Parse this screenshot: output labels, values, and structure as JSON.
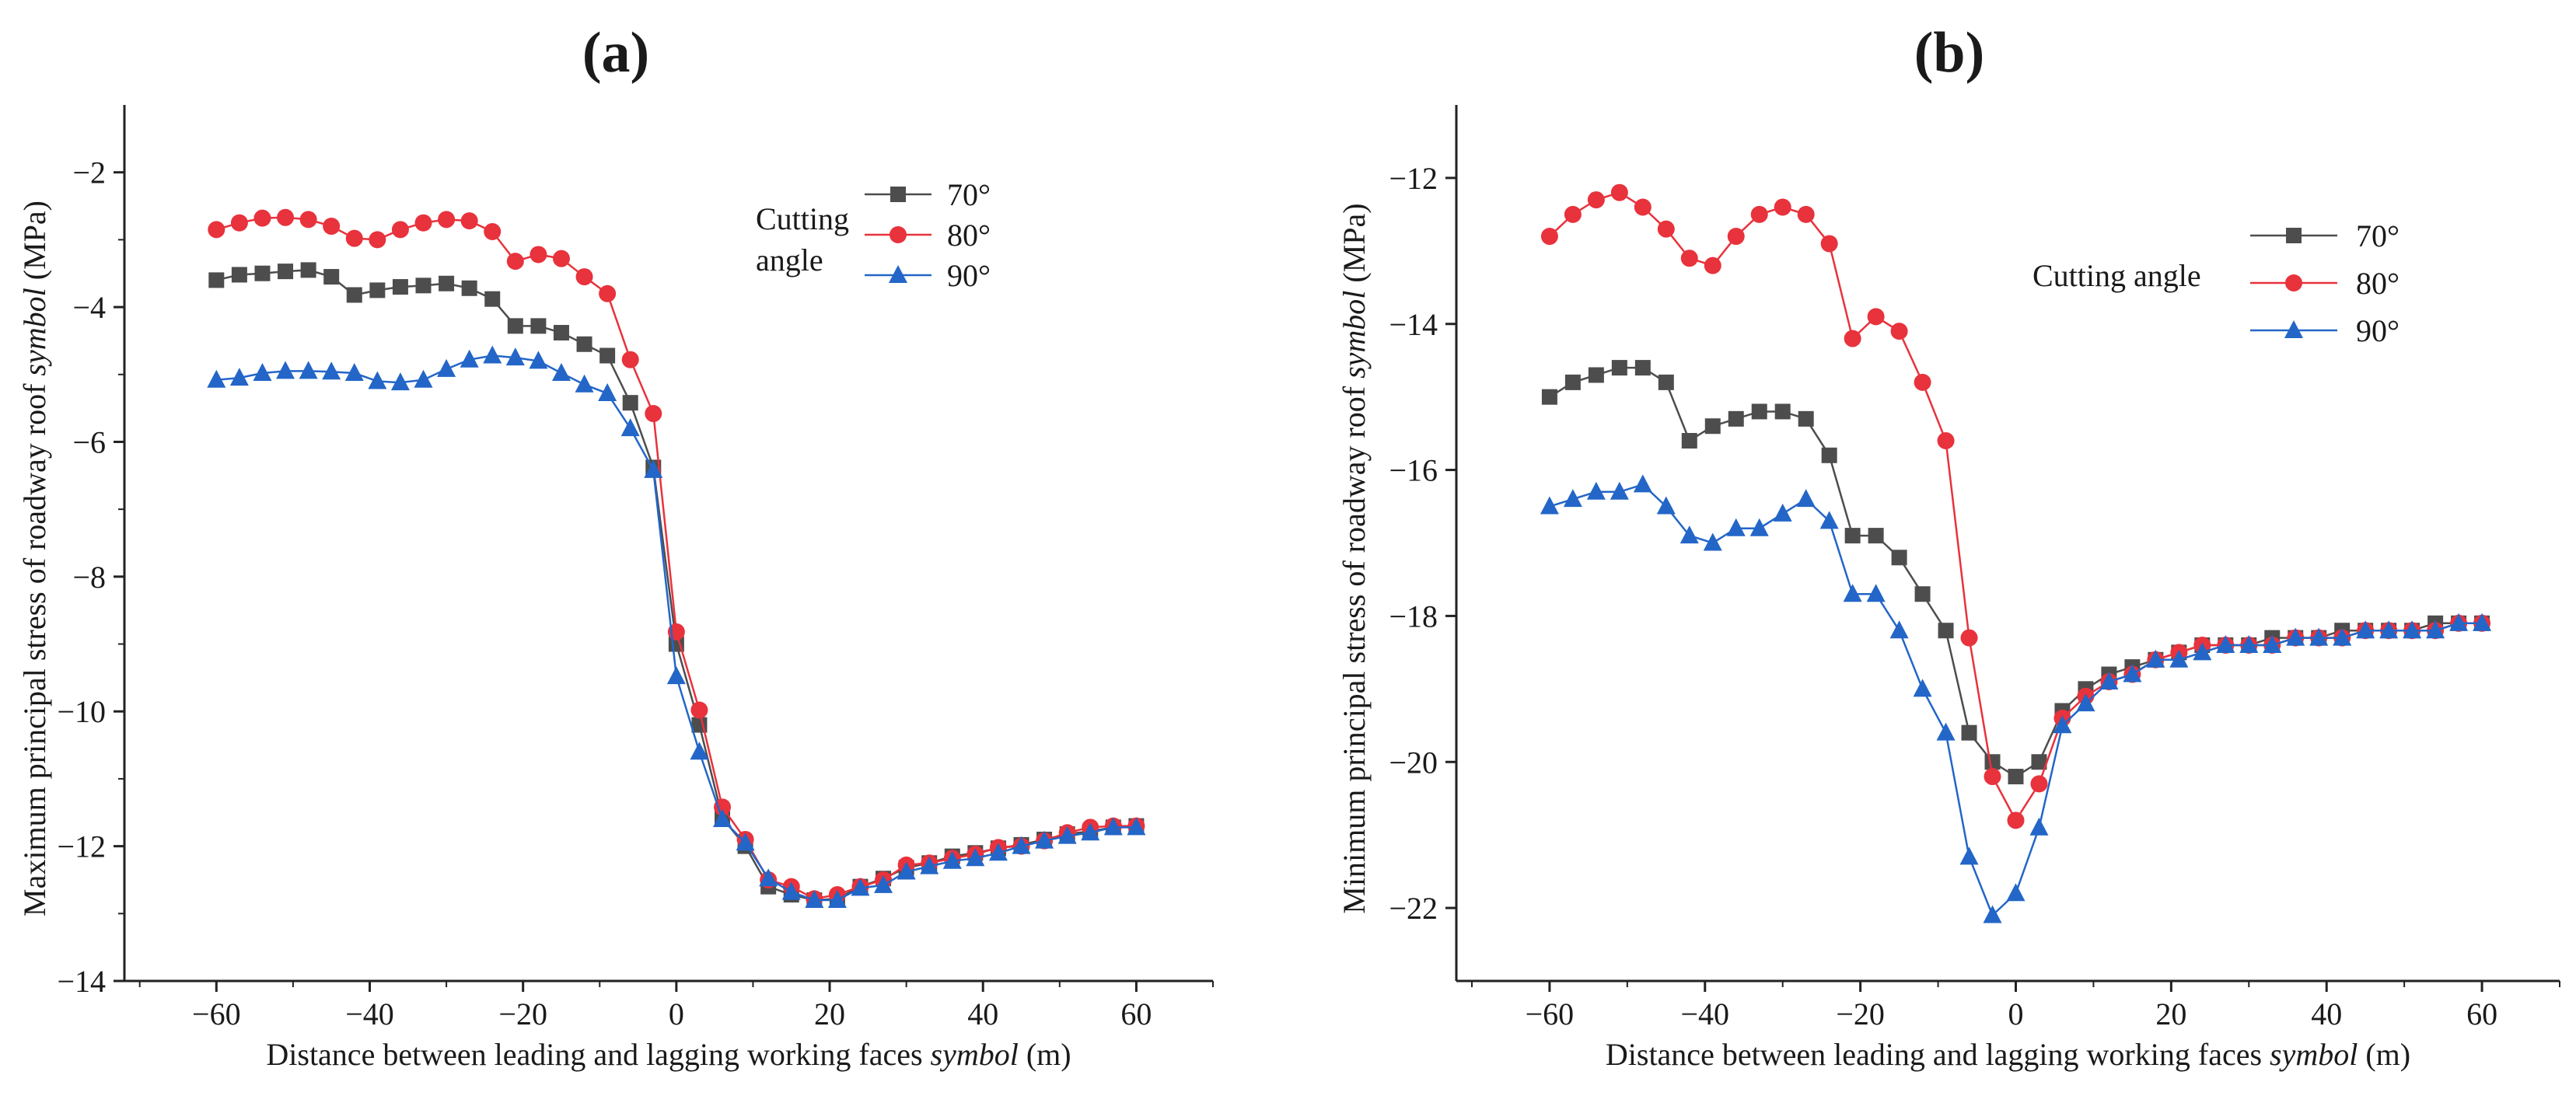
{
  "chart_data": [
    {
      "type": "line",
      "panel": "(a)",
      "xlabel_parts": [
        "Distance between leading and lagging working faces ",
        "symbol",
        " (m)"
      ],
      "ylabel_parts": [
        "Maximum principal stress of roadway roof ",
        "symbol",
        " (MPa)"
      ],
      "xlim": [
        -72,
        70
      ],
      "ylim": [
        -14,
        -1
      ],
      "xticks": [
        -60,
        -40,
        -20,
        0,
        20,
        40,
        60
      ],
      "yticks": [
        -14,
        -12,
        -10,
        -8,
        -6,
        -4,
        -2
      ],
      "legend_title_lines": [
        "Cutting",
        "angle"
      ],
      "legend_position": "top-right",
      "series": [
        {
          "name": "70°",
          "color": "#4d4d4d",
          "marker": "square",
          "x": [
            -60,
            -57,
            -54,
            -51,
            -48,
            -45,
            -42,
            -39,
            -36,
            -33,
            -30,
            -27,
            -24,
            -21,
            -18,
            -15,
            -12,
            -9,
            -6,
            -3,
            0,
            3,
            6,
            9,
            12,
            15,
            18,
            21,
            24,
            27,
            30,
            33,
            36,
            39,
            42,
            45,
            48,
            51,
            54,
            57,
            60
          ],
          "y": [
            -3.6,
            -3.52,
            -3.5,
            -3.47,
            -3.45,
            -3.55,
            -3.82,
            -3.75,
            -3.7,
            -3.68,
            -3.65,
            -3.72,
            -3.88,
            -4.28,
            -4.28,
            -4.38,
            -4.55,
            -4.72,
            -5.42,
            -6.38,
            -9.0,
            -10.2,
            -11.58,
            -12.0,
            -12.6,
            -12.72,
            -12.8,
            -12.78,
            -12.6,
            -12.48,
            -12.32,
            -12.25,
            -12.15,
            -12.1,
            -12.03,
            -11.98,
            -11.9,
            -11.82,
            -11.78,
            -11.72,
            -11.7
          ]
        },
        {
          "name": "80°",
          "color": "#e8323c",
          "marker": "circle",
          "x": [
            -60,
            -57,
            -54,
            -51,
            -48,
            -45,
            -42,
            -39,
            -36,
            -33,
            -30,
            -27,
            -24,
            -21,
            -18,
            -15,
            -12,
            -9,
            -6,
            -3,
            0,
            3,
            6,
            9,
            12,
            15,
            18,
            21,
            24,
            27,
            30,
            33,
            36,
            39,
            42,
            45,
            48,
            51,
            54,
            57,
            60
          ],
          "y": [
            -2.85,
            -2.75,
            -2.68,
            -2.67,
            -2.7,
            -2.8,
            -2.98,
            -3.0,
            -2.85,
            -2.75,
            -2.7,
            -2.72,
            -2.88,
            -3.32,
            -3.22,
            -3.28,
            -3.55,
            -3.8,
            -4.78,
            -5.58,
            -8.82,
            -9.98,
            -11.42,
            -11.9,
            -12.5,
            -12.6,
            -12.78,
            -12.72,
            -12.6,
            -12.5,
            -12.28,
            -12.25,
            -12.18,
            -12.12,
            -12.02,
            -12.0,
            -11.92,
            -11.8,
            -11.72,
            -11.7,
            -11.7
          ]
        },
        {
          "name": "90°",
          "color": "#2366c8",
          "marker": "triangle",
          "x": [
            -60,
            -57,
            -54,
            -51,
            -48,
            -45,
            -42,
            -39,
            -36,
            -33,
            -30,
            -27,
            -24,
            -21,
            -18,
            -15,
            -12,
            -9,
            -6,
            -3,
            0,
            3,
            6,
            9,
            12,
            15,
            18,
            21,
            24,
            27,
            30,
            33,
            36,
            39,
            42,
            45,
            48,
            51,
            54,
            57,
            60
          ],
          "y": [
            -5.08,
            -5.05,
            -4.98,
            -4.95,
            -4.95,
            -4.96,
            -4.98,
            -5.1,
            -5.12,
            -5.08,
            -4.92,
            -4.78,
            -4.72,
            -4.75,
            -4.8,
            -4.98,
            -5.15,
            -5.28,
            -5.8,
            -6.42,
            -9.48,
            -10.6,
            -11.6,
            -11.95,
            -12.48,
            -12.68,
            -12.8,
            -12.8,
            -12.62,
            -12.58,
            -12.38,
            -12.3,
            -12.22,
            -12.18,
            -12.1,
            -12.0,
            -11.92,
            -11.85,
            -11.8,
            -11.72,
            -11.72
          ]
        }
      ]
    },
    {
      "type": "line",
      "panel": "(b)",
      "xlabel_parts": [
        "Distance between leading and lagging working faces ",
        "symbol",
        " (m)"
      ],
      "ylabel_parts": [
        "Minimum principal stress of roadway roof ",
        "symbol",
        " (MPa)"
      ],
      "xlim": [
        -72,
        70
      ],
      "ylim": [
        -23,
        -11
      ],
      "xticks": [
        -60,
        -40,
        -20,
        0,
        20,
        40,
        60
      ],
      "yticks": [
        -22,
        -20,
        -18,
        -16,
        -14,
        -12
      ],
      "legend_title_lines": [
        "Cutting angle"
      ],
      "legend_position": "top-right",
      "series": [
        {
          "name": "70°",
          "color": "#4d4d4d",
          "marker": "square",
          "x": [
            -60,
            -57,
            -54,
            -51,
            -48,
            -45,
            -42,
            -39,
            -36,
            -33,
            -30,
            -27,
            -24,
            -21,
            -18,
            -15,
            -12,
            -9,
            -6,
            -3,
            0,
            3,
            6,
            9,
            12,
            15,
            18,
            21,
            24,
            27,
            30,
            33,
            36,
            39,
            42,
            45,
            48,
            51,
            54,
            57,
            60
          ],
          "y": [
            -15.0,
            -14.8,
            -14.7,
            -14.6,
            -14.6,
            -14.8,
            -15.6,
            -15.4,
            -15.3,
            -15.2,
            -15.2,
            -15.3,
            -15.8,
            -16.9,
            -16.9,
            -17.2,
            -17.7,
            -18.2,
            -19.6,
            -20.0,
            -20.2,
            -20.0,
            -19.3,
            -19.0,
            -18.8,
            -18.7,
            -18.6,
            -18.5,
            -18.4,
            -18.4,
            -18.4,
            -18.3,
            -18.3,
            -18.3,
            -18.2,
            -18.2,
            -18.2,
            -18.2,
            -18.1,
            -18.1,
            -18.1
          ]
        },
        {
          "name": "80°",
          "color": "#e8323c",
          "marker": "circle",
          "x": [
            -60,
            -57,
            -54,
            -51,
            -48,
            -45,
            -42,
            -39,
            -36,
            -33,
            -30,
            -27,
            -24,
            -21,
            -18,
            -15,
            -12,
            -9,
            -6,
            -3,
            0,
            3,
            6,
            9,
            12,
            15,
            18,
            21,
            24,
            27,
            30,
            33,
            36,
            39,
            42,
            45,
            48,
            51,
            54,
            57,
            60
          ],
          "y": [
            -12.8,
            -12.5,
            -12.3,
            -12.2,
            -12.4,
            -12.7,
            -13.1,
            -13.2,
            -12.8,
            -12.5,
            -12.4,
            -12.5,
            -12.9,
            -14.2,
            -13.9,
            -14.1,
            -14.8,
            -15.6,
            -18.3,
            -20.2,
            -20.8,
            -20.3,
            -19.4,
            -19.1,
            -18.9,
            -18.8,
            -18.6,
            -18.5,
            -18.4,
            -18.4,
            -18.4,
            -18.4,
            -18.3,
            -18.3,
            -18.3,
            -18.2,
            -18.2,
            -18.2,
            -18.2,
            -18.1,
            -18.1
          ]
        },
        {
          "name": "90°",
          "color": "#2366c8",
          "marker": "triangle",
          "x": [
            -60,
            -57,
            -54,
            -51,
            -48,
            -45,
            -42,
            -39,
            -36,
            -33,
            -30,
            -27,
            -24,
            -21,
            -18,
            -15,
            -12,
            -9,
            -6,
            -3,
            0,
            3,
            6,
            9,
            12,
            15,
            18,
            21,
            24,
            27,
            30,
            33,
            36,
            39,
            42,
            45,
            48,
            51,
            54,
            57,
            60
          ],
          "y": [
            -16.5,
            -16.4,
            -16.3,
            -16.3,
            -16.2,
            -16.5,
            -16.9,
            -17.0,
            -16.8,
            -16.8,
            -16.6,
            -16.4,
            -16.7,
            -17.7,
            -17.7,
            -18.2,
            -19.0,
            -19.6,
            -21.3,
            -22.1,
            -21.8,
            -20.9,
            -19.5,
            -19.2,
            -18.9,
            -18.8,
            -18.6,
            -18.6,
            -18.5,
            -18.4,
            -18.4,
            -18.4,
            -18.3,
            -18.3,
            -18.3,
            -18.2,
            -18.2,
            -18.2,
            -18.2,
            -18.1,
            -18.1
          ]
        }
      ]
    }
  ]
}
